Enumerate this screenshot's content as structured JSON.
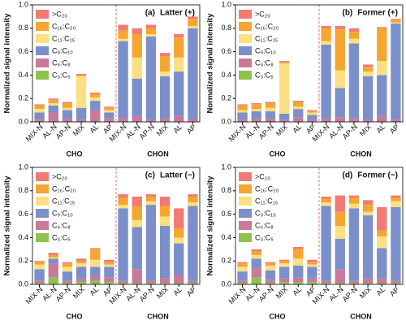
{
  "chart_data": [
    {
      "type": "bar",
      "stacked": true,
      "panel_label": "(a)",
      "title": "Latter (+)",
      "ylabel": "Normalized signal intensity",
      "categories": [
        "MIX-N",
        "AL-N",
        "AP-N",
        "MIX",
        "AL",
        "AP",
        "MIX-N",
        "AL-N",
        "AP-N",
        "MIX",
        "AL",
        "AP"
      ],
      "groups": [
        "CHO",
        "CHON"
      ],
      "ylim": [
        0,
        1
      ],
      "yticks": [
        {
          "value": 0,
          "label": "0.0"
        },
        0.2,
        0.4,
        0.6,
        0.8,
        {
          "value": 1,
          "label": "1.0"
        }
      ],
      "series": [
        {
          "name": "C₃:C₅",
          "color": "#8fc24f",
          "values": [
            0,
            0,
            0,
            0,
            0,
            0,
            0,
            0,
            0,
            0,
            0,
            0
          ]
        },
        {
          "name": "C₆:C₈",
          "color": "#c9799a",
          "values": [
            0.02,
            0.08,
            0.03,
            0.02,
            0.1,
            0.03,
            0.03,
            0.05,
            0.02,
            0.03,
            0.05,
            0.02
          ]
        },
        {
          "name": "C₉:C₁₀",
          "color": "#7b8fcb",
          "values": [
            0.06,
            0.06,
            0.07,
            0.1,
            0.08,
            0.05,
            0.66,
            0.32,
            0.71,
            0.36,
            0.38,
            0.78
          ]
        },
        {
          "name": "C₁₁:C₁₅",
          "color": "#fbdf82",
          "values": [
            0.03,
            0.02,
            0.02,
            0.27,
            0.03,
            0.02,
            0.02,
            0.18,
            0.02,
            0.04,
            0.12,
            0.02
          ]
        },
        {
          "name": "C₁₆:C₂₀",
          "color": "#f5a631",
          "values": [
            0.03,
            0.03,
            0.04,
            0.01,
            0.03,
            0.02,
            0.07,
            0.2,
            0.05,
            0.13,
            0.17,
            0.06
          ]
        },
        {
          "name": ">C₂₀",
          "color": "#f07b74",
          "values": [
            0.01,
            0.01,
            0.01,
            0.01,
            0.01,
            0.01,
            0.05,
            0.05,
            0.03,
            0.03,
            0.03,
            0.02
          ]
        }
      ]
    },
    {
      "type": "bar",
      "stacked": true,
      "panel_label": "(b)",
      "title": "Former (+)",
      "ylabel": "Normalized signal intensity",
      "categories": [
        "MIX-N",
        "AL-N",
        "AP-N",
        "MIX",
        "AL",
        "AP",
        "MIX-N",
        "AL-N",
        "AP-N",
        "MIX",
        "AL",
        "AP"
      ],
      "groups": [
        "CHO",
        "CHON"
      ],
      "ylim": [
        0,
        1
      ],
      "yticks": [
        {
          "value": 0,
          "label": "0.0"
        },
        0.2,
        0.4,
        0.6,
        0.8,
        {
          "value": 1,
          "label": "1.0"
        }
      ],
      "series": [
        {
          "name": "C₃:C₅",
          "color": "#8fc24f",
          "values": [
            0,
            0,
            0,
            0,
            0,
            0,
            0,
            0,
            0,
            0,
            0,
            0
          ]
        },
        {
          "name": "C₆:C₈",
          "color": "#c9799a",
          "values": [
            0.02,
            0.03,
            0.03,
            0.02,
            0.04,
            0.02,
            0.03,
            0.04,
            0.03,
            0.02,
            0.05,
            0.02
          ]
        },
        {
          "name": "C₉:C₁₀",
          "color": "#7b8fcb",
          "values": [
            0.06,
            0.06,
            0.06,
            0.05,
            0.07,
            0.04,
            0.63,
            0.25,
            0.64,
            0.37,
            0.35,
            0.82
          ]
        },
        {
          "name": "C₁₁:C₁₅",
          "color": "#fbdf82",
          "values": [
            0.02,
            0.02,
            0.03,
            0.43,
            0.02,
            0.02,
            0.03,
            0.15,
            0.04,
            0.04,
            0.12,
            0.01
          ]
        },
        {
          "name": "C₁₆:C₂₀",
          "color": "#f5a631",
          "values": [
            0.04,
            0.04,
            0.04,
            0.01,
            0.04,
            0.01,
            0.11,
            0.35,
            0.06,
            0.04,
            0.28,
            0.02
          ]
        },
        {
          "name": ">C₂₀",
          "color": "#f07b74",
          "values": [
            0.01,
            0.01,
            0.01,
            0.01,
            0.01,
            0.01,
            0.02,
            0.03,
            0.03,
            0.02,
            0.01,
            0.01
          ]
        }
      ]
    },
    {
      "type": "bar",
      "stacked": true,
      "panel_label": "(c)",
      "title": "Latter (−)",
      "ylabel": "Normalized signal intensity",
      "categories": [
        "MIX-N",
        "AL-N",
        "AP-N",
        "MIX",
        "AL",
        "AP",
        "MIX-N",
        "AL-N",
        "AP-N",
        "MIX",
        "AL",
        "AP"
      ],
      "groups": [
        "CHO",
        "CHON"
      ],
      "ylim": [
        0,
        1
      ],
      "yticks": [
        {
          "value": 0,
          "label": "0.0"
        },
        0.2,
        0.4,
        0.6,
        0.8,
        {
          "value": 1,
          "label": "1.0"
        }
      ],
      "series": [
        {
          "name": "C₃:C₅",
          "color": "#8fc24f",
          "values": [
            0.01,
            0.06,
            0.01,
            0.02,
            0.03,
            0.02,
            0.01,
            0.01,
            0.01,
            0.01,
            0.01,
            0.01
          ]
        },
        {
          "name": "C₆:C₈",
          "color": "#c9799a",
          "values": [
            0.02,
            0.12,
            0.02,
            0.03,
            0.04,
            0.04,
            0.02,
            0.12,
            0.02,
            0.04,
            0.07,
            0.02
          ]
        },
        {
          "name": "C₉:C₁₀",
          "color": "#7b8fcb",
          "values": [
            0.1,
            0.04,
            0.08,
            0.1,
            0.08,
            0.09,
            0.62,
            0.36,
            0.65,
            0.45,
            0.27,
            0.64
          ]
        },
        {
          "name": "C₁₁:C₁₅",
          "color": "#fbdf82",
          "values": [
            0.04,
            0.01,
            0.04,
            0.03,
            0.06,
            0.02,
            0.03,
            0.06,
            0.03,
            0.08,
            0.05,
            0.03
          ]
        },
        {
          "name": "C₁₆:C₂₀",
          "color": "#f5a631",
          "values": [
            0.02,
            0.02,
            0.03,
            0.02,
            0.09,
            0.02,
            0.06,
            0.12,
            0.04,
            0.09,
            0.08,
            0.05
          ]
        },
        {
          "name": ">C₂₀",
          "color": "#f07b74",
          "values": [
            0.01,
            0.02,
            0.01,
            0.02,
            0.01,
            0.02,
            0.03,
            0.08,
            0.02,
            0.08,
            0.17,
            0.02
          ]
        }
      ]
    },
    {
      "type": "bar",
      "stacked": true,
      "panel_label": "(d)",
      "title": "Former (−)",
      "ylabel": "Normalized signal intensity",
      "categories": [
        "MIX-N",
        "AL-N",
        "AP-N",
        "MIX",
        "AL",
        "AP",
        "MIX-N",
        "AL-N",
        "AP-N",
        "MIX",
        "AL",
        "AP"
      ],
      "groups": [
        "CHO",
        "CHON"
      ],
      "ylim": [
        0,
        1
      ],
      "yticks": [
        {
          "value": 0,
          "label": "0.0"
        },
        0.2,
        0.4,
        0.6,
        0.8,
        {
          "value": 1,
          "label": "1.0"
        }
      ],
      "series": [
        {
          "name": "C₃:C₅",
          "color": "#8fc24f",
          "values": [
            0.01,
            0.06,
            0.01,
            0.02,
            0.02,
            0.02,
            0.01,
            0.01,
            0.01,
            0.01,
            0.01,
            0.01
          ]
        },
        {
          "name": "C₆:C₈",
          "color": "#c9799a",
          "values": [
            0.02,
            0.08,
            0.03,
            0.03,
            0.04,
            0.03,
            0.02,
            0.12,
            0.02,
            0.04,
            0.04,
            0.02
          ]
        },
        {
          "name": "C₉:C₁₀",
          "color": "#7b8fcb",
          "values": [
            0.08,
            0.08,
            0.08,
            0.1,
            0.1,
            0.1,
            0.64,
            0.26,
            0.62,
            0.54,
            0.26,
            0.63
          ]
        },
        {
          "name": "C₁₁:C₁₅",
          "color": "#fbdf82",
          "values": [
            0.04,
            0.03,
            0.04,
            0.03,
            0.06,
            0.02,
            0.03,
            0.11,
            0.04,
            0.03,
            0.1,
            0.05
          ]
        },
        {
          "name": "C₁₆:C₂₀",
          "color": "#f5a631",
          "values": [
            0.03,
            0.03,
            0.02,
            0.02,
            0.08,
            0.02,
            0.03,
            0.12,
            0.05,
            0.06,
            0.05,
            0.03
          ]
        },
        {
          "name": ">C₂₀",
          "color": "#f07b74",
          "values": [
            0.01,
            0.02,
            0.01,
            0.01,
            0.02,
            0.02,
            0.02,
            0.14,
            0.02,
            0.04,
            0.2,
            0.02
          ]
        }
      ]
    }
  ]
}
